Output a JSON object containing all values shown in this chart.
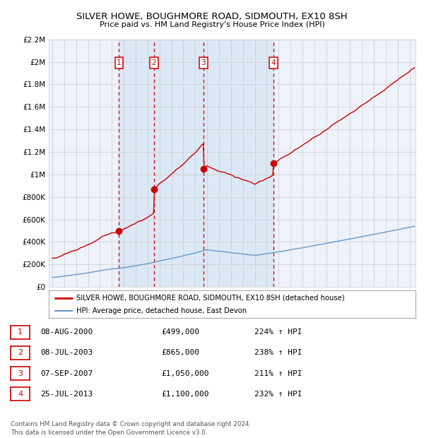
{
  "title": "SILVER HOWE, BOUGHMORE ROAD, SIDMOUTH, EX10 8SH",
  "subtitle": "Price paid vs. HM Land Registry's House Price Index (HPI)",
  "ylim": [
    0,
    2200000
  ],
  "yticks": [
    0,
    200000,
    400000,
    600000,
    800000,
    1000000,
    1200000,
    1400000,
    1600000,
    1800000,
    2000000,
    2200000
  ],
  "ytick_labels": [
    "£0",
    "£200K",
    "£400K",
    "£600K",
    "£800K",
    "£1M",
    "£1.2M",
    "£1.4M",
    "£1.6M",
    "£1.8M",
    "£2M",
    "£2.2M"
  ],
  "xlim_start": 1994.7,
  "xlim_end": 2025.5,
  "sale_dates_num": [
    2000.6,
    2003.52,
    2007.68,
    2013.56
  ],
  "sale_prices": [
    499000,
    865000,
    1050000,
    1100000
  ],
  "sale_labels": [
    "1",
    "2",
    "3",
    "4"
  ],
  "legend_red": "SILVER HOWE, BOUGHMORE ROAD, SIDMOUTH, EX10 8SH (detached house)",
  "legend_blue": "HPI: Average price, detached house, East Devon",
  "table_rows": [
    [
      "1",
      "08-AUG-2000",
      "£499,000",
      "224% ↑ HPI"
    ],
    [
      "2",
      "08-JUL-2003",
      "£865,000",
      "238% ↑ HPI"
    ],
    [
      "3",
      "07-SEP-2007",
      "£1,050,000",
      "211% ↑ HPI"
    ],
    [
      "4",
      "25-JUL-2013",
      "£1,100,000",
      "232% ↑ HPI"
    ]
  ],
  "footer": "Contains HM Land Registry data © Crown copyright and database right 2024.\nThis data is licensed under the Open Government Licence v3.0.",
  "red_color": "#cc0000",
  "blue_color": "#6699cc",
  "bg_color": "#ffffff",
  "plot_bg": "#eef2fb",
  "sale_bg": "#dce8f5",
  "grid_color": "#cccccc"
}
